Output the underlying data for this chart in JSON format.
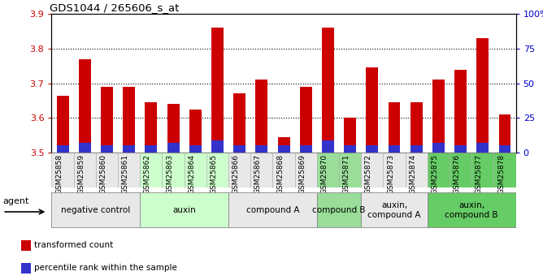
{
  "title": "GDS1044 / 265606_s_at",
  "samples": [
    "GSM25858",
    "GSM25859",
    "GSM25860",
    "GSM25861",
    "GSM25862",
    "GSM25863",
    "GSM25864",
    "GSM25865",
    "GSM25866",
    "GSM25867",
    "GSM25868",
    "GSM25869",
    "GSM25870",
    "GSM25871",
    "GSM25872",
    "GSM25873",
    "GSM25874",
    "GSM25875",
    "GSM25876",
    "GSM25877",
    "GSM25878"
  ],
  "red_values": [
    3.665,
    3.77,
    3.69,
    3.69,
    3.645,
    3.64,
    3.625,
    3.86,
    3.67,
    3.71,
    3.545,
    3.69,
    3.86,
    3.6,
    3.745,
    3.645,
    3.645,
    3.71,
    3.74,
    3.83,
    3.61
  ],
  "blue_values_pct": [
    5,
    7,
    5,
    5,
    5,
    7,
    5,
    9,
    5,
    5,
    5,
    5,
    9,
    5,
    5,
    5,
    5,
    7,
    5,
    7,
    5
  ],
  "ylim_left": [
    3.5,
    3.9
  ],
  "ylim_right": [
    0,
    100
  ],
  "yticks_left": [
    3.5,
    3.6,
    3.7,
    3.8,
    3.9
  ],
  "yticks_right": [
    0,
    25,
    50,
    75,
    100
  ],
  "ytick_labels_right": [
    "0",
    "25",
    "50",
    "75",
    "100%"
  ],
  "red_color": "#cc0000",
  "blue_color": "#3333cc",
  "bar_width": 0.55,
  "groups": [
    {
      "label": "negative control",
      "start": 0,
      "end": 3,
      "color": "#e8e8e8"
    },
    {
      "label": "auxin",
      "start": 4,
      "end": 7,
      "color": "#ccffcc"
    },
    {
      "label": "compound A",
      "start": 8,
      "end": 11,
      "color": "#e8e8e8"
    },
    {
      "label": "compound B",
      "start": 12,
      "end": 13,
      "color": "#99dd99"
    },
    {
      "label": "auxin,\ncompound A",
      "start": 14,
      "end": 16,
      "color": "#e8e8e8"
    },
    {
      "label": "auxin,\ncompound B",
      "start": 17,
      "end": 20,
      "color": "#66cc66"
    }
  ],
  "legend_items": [
    {
      "label": "transformed count",
      "color": "#cc0000"
    },
    {
      "label": "percentile rank within the sample",
      "color": "#3333cc"
    }
  ],
  "agent_label": "agent",
  "grid_linestyle": "dotted",
  "left_axis_color": "#cc0000",
  "right_axis_color": "#0000cc",
  "bg_colors": [
    "#e8e8e8",
    "#ccffcc",
    "#e8e8e8",
    "#99dd99",
    "#e8e8e8",
    "#66cc66"
  ]
}
